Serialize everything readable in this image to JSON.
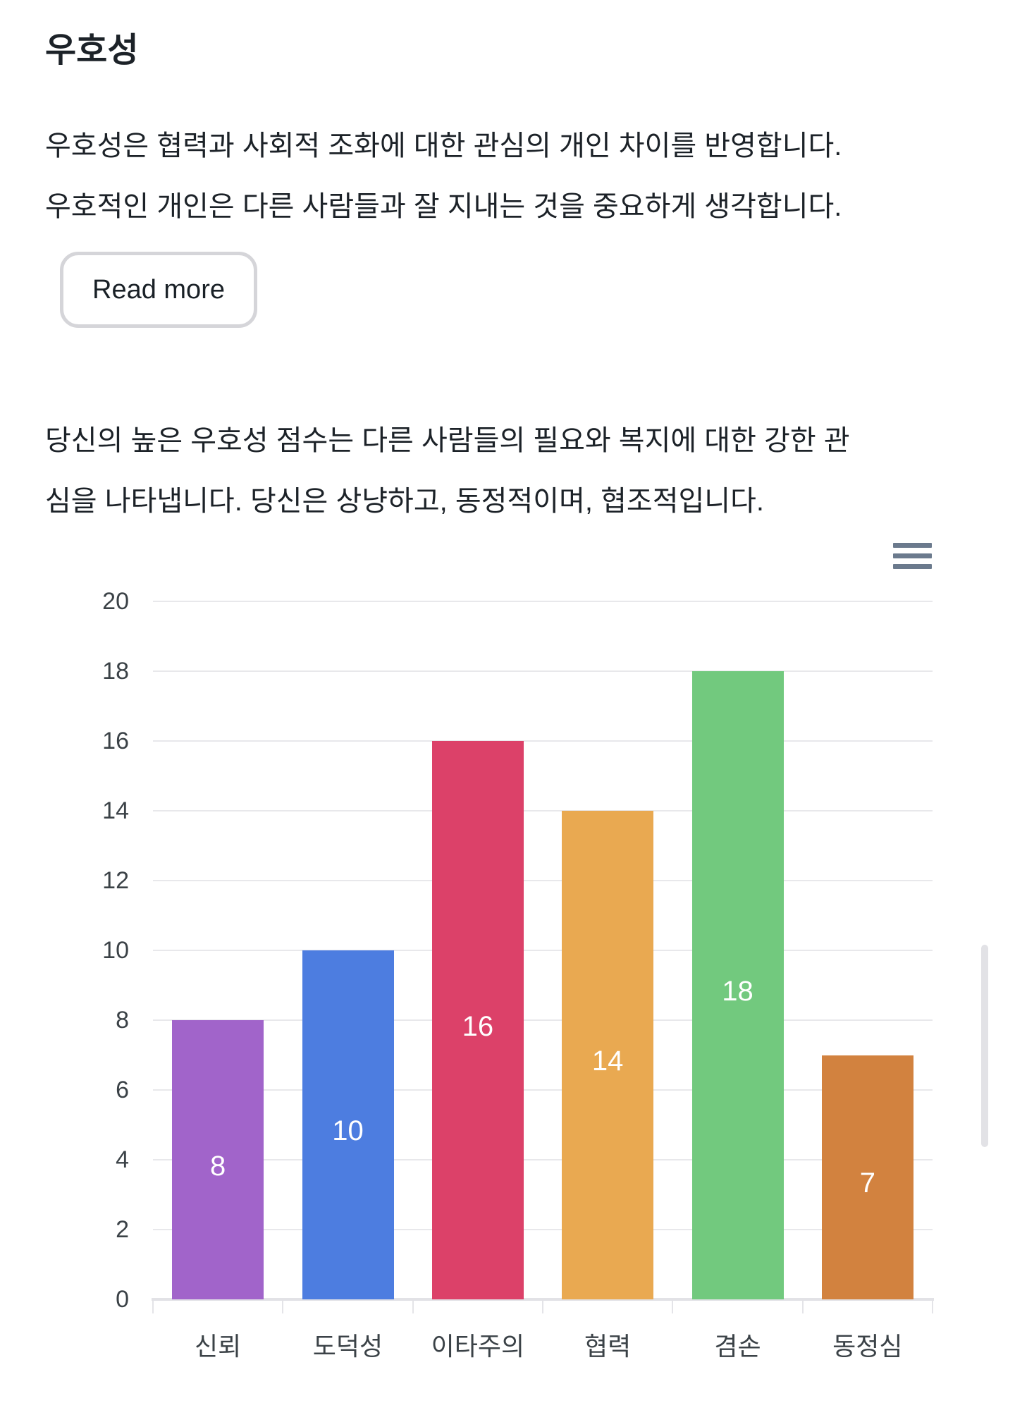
{
  "page": {
    "title": "우호성",
    "description_lines": [
      "우호성은 협력과 사회적 조화에 대한 관심의 개인 차이를 반영합니다.",
      "우호적인 개인은 다른 사람들과 잘 지내는 것을 중요하게 생각합니다."
    ],
    "read_more_label": "Read more",
    "interpretation_lines": [
      "당신의 높은 우호성 점수는 다른 사람들의 필요와 복지에 대한 강한 관",
      "심을 나타냅니다. 당신은 상냥하고, 동정적이며, 협조적입니다."
    ],
    "chart_menu_icon": "hamburger-menu-icon"
  },
  "chart_data": {
    "type": "bar",
    "title": "",
    "categories": [
      "신뢰",
      "도덕성",
      "이타주의",
      "협력",
      "겸손",
      "동정심"
    ],
    "values": [
      8,
      10,
      16,
      14,
      18,
      7
    ],
    "bar_colors": [
      "#a164ca",
      "#4d7de0",
      "#dc4169",
      "#e9a951",
      "#72c97e",
      "#d2823f"
    ],
    "value_label_color": "#ffffff",
    "yticks_top_to_bottom": [
      20,
      18,
      16,
      14,
      12,
      10,
      8,
      6,
      4,
      2,
      0
    ],
    "ylim": [
      0,
      20
    ],
    "xlabel": "",
    "ylabel": "",
    "grid": "horizontal gridlines on",
    "legend": "none"
  },
  "colors": {
    "text": "#1c2228",
    "axis_label": "#3b4247",
    "gridline": "#e8e8eb",
    "button_border": "#d5d5d9",
    "hamburger_icon": "#6b7a8d",
    "scrollbar": "#e2e2e6"
  }
}
